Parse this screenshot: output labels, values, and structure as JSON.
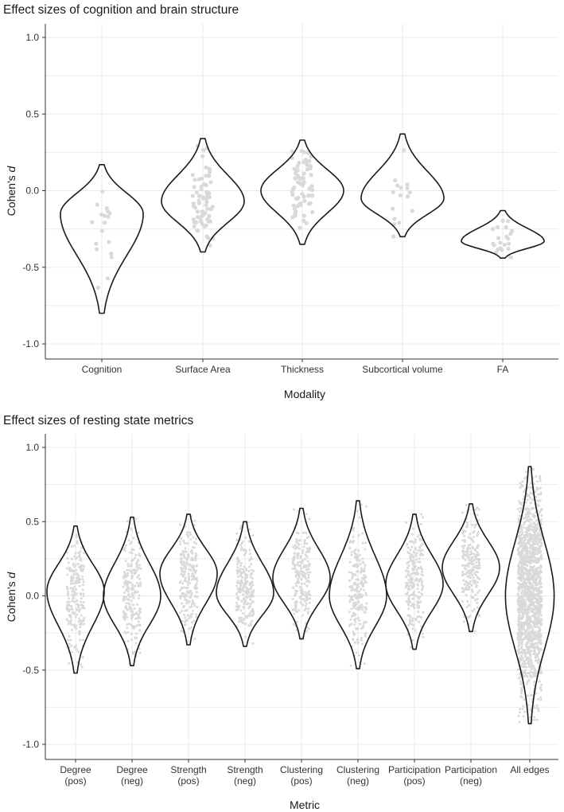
{
  "chart_data": [
    {
      "type": "violin",
      "title": "Effect sizes of cognition and brain structure",
      "xlabel": "Modality",
      "ylabel": "Cohen's d",
      "ylim": [
        -1.1,
        1.1
      ],
      "yticks": [
        "1.0",
        "0.5",
        "0.0",
        "-0.5",
        "-1.0"
      ],
      "grid": true,
      "categories": [
        {
          "label": [
            "Cognition"
          ],
          "min": -0.8,
          "max": 0.17,
          "mode": -0.15,
          "n": 18
        },
        {
          "label": [
            "Surface Area"
          ],
          "min": -0.4,
          "max": 0.34,
          "mode": -0.07,
          "n": 70
        },
        {
          "label": [
            "Thickness"
          ],
          "min": -0.35,
          "max": 0.33,
          "mode": 0.0,
          "n": 70
        },
        {
          "label": [
            "Subcortical volume"
          ],
          "min": -0.3,
          "max": 0.37,
          "mode": -0.05,
          "n": 16
        },
        {
          "label": [
            "FA"
          ],
          "min": -0.44,
          "max": -0.13,
          "mode": -0.33,
          "n": 22
        }
      ]
    },
    {
      "type": "violin",
      "title": "Effect sizes of resting state metrics",
      "xlabel": "Metric",
      "ylabel": "Cohen's d",
      "ylim": [
        -1.1,
        1.1
      ],
      "yticks": [
        "1.0",
        "0.5",
        "0.0",
        "-0.5",
        "-1.0"
      ],
      "grid": true,
      "categories": [
        {
          "label": [
            "Degree",
            "(pos)"
          ],
          "min": -0.52,
          "max": 0.47,
          "mode": 0.03,
          "n": 220
        },
        {
          "label": [
            "Degree",
            "(neg)"
          ],
          "min": -0.47,
          "max": 0.53,
          "mode": 0.0,
          "n": 220
        },
        {
          "label": [
            "Strength",
            "(pos)"
          ],
          "min": -0.33,
          "max": 0.55,
          "mode": 0.15,
          "n": 220
        },
        {
          "label": [
            "Strength",
            "(neg)"
          ],
          "min": -0.34,
          "max": 0.5,
          "mode": 0.02,
          "n": 220
        },
        {
          "label": [
            "Clustering",
            "(pos)"
          ],
          "min": -0.29,
          "max": 0.59,
          "mode": 0.12,
          "n": 220
        },
        {
          "label": [
            "Clustering",
            "(neg)"
          ],
          "min": -0.49,
          "max": 0.64,
          "mode": 0.0,
          "n": 220
        },
        {
          "label": [
            "Participation",
            "(pos)"
          ],
          "min": -0.36,
          "max": 0.55,
          "mode": 0.08,
          "n": 220
        },
        {
          "label": [
            "Participation",
            "(neg)"
          ],
          "min": -0.24,
          "max": 0.62,
          "mode": 0.19,
          "n": 220
        },
        {
          "label": [
            "All edges"
          ],
          "min": -0.86,
          "max": 0.87,
          "mode": 0.0,
          "n": 1500
        }
      ]
    }
  ]
}
